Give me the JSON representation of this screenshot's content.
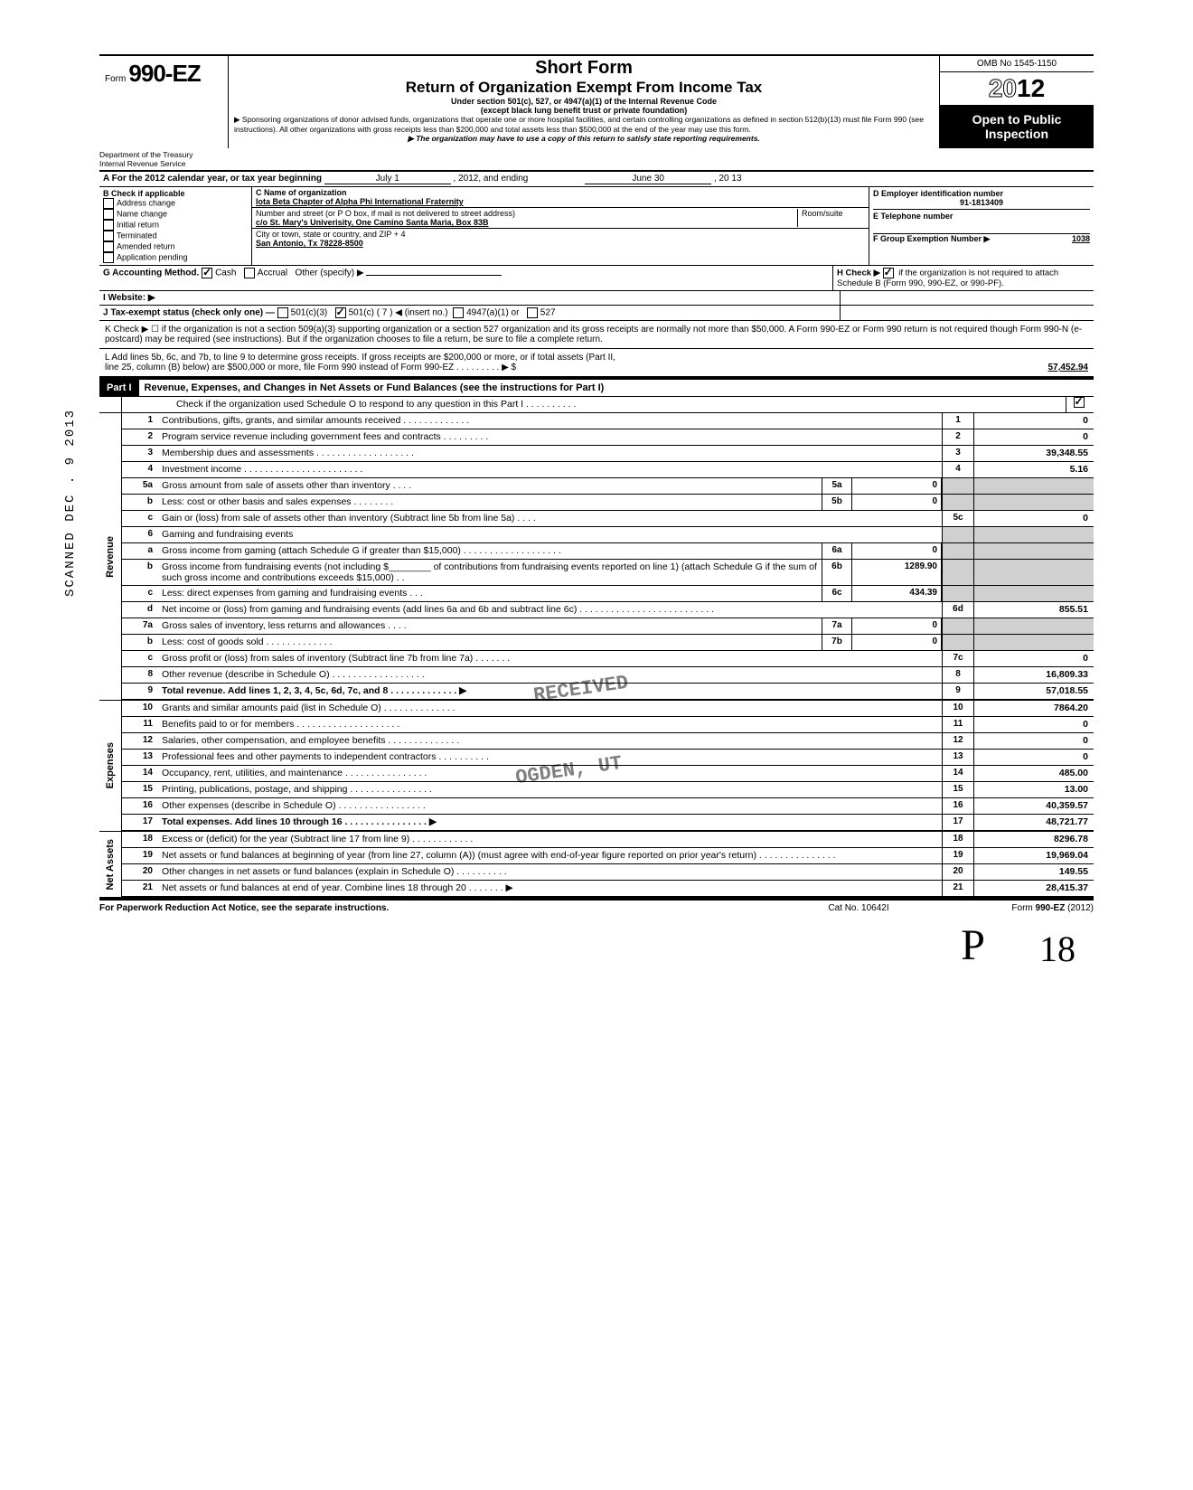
{
  "side_stamp": "SCANNED DEC . 9 2013",
  "omb": "OMB No 1545-1150",
  "form_label": "Form",
  "form_no": "990-EZ",
  "title1": "Short Form",
  "title2": "Return of Organization Exempt From Income Tax",
  "title3": "Under section 501(c), 527, or 4947(a)(1) of the Internal Revenue Code",
  "title4": "(except black lung benefit trust or private foundation)",
  "title5": "▶ Sponsoring organizations of donor advised funds, organizations that operate one or more hospital facilities, and certain controlling organizations as defined in section 512(b)(13) must file Form 990 (see instructions). All other organizations with gross receipts less than $200,000 and total assets less than $500,000 at the end of the year may use this form.",
  "title6": "▶ The organization may have to use a copy of this return to satisfy state reporting requirements.",
  "year": "2012",
  "open_public": "Open to Public Inspection",
  "dept1": "Department of the Treasury",
  "dept2": "Internal Revenue Service",
  "line_a": "A  For the 2012 calendar year, or tax year beginning",
  "line_a_begin": "July 1",
  "line_a_mid": ", 2012, and ending",
  "line_a_end": "June 30",
  "line_a_yr": ", 20   13",
  "b_label": "B  Check if applicable",
  "b_items": [
    "Address change",
    "Name change",
    "Initial return",
    "Terminated",
    "Amended return",
    "Application pending"
  ],
  "c_label": "C  Name of organization",
  "org_name": "Iota Beta Chapter of Alpha Phi International Fraternity",
  "street_label": "Number and street (or P O  box, if mail is not delivered to street address)",
  "room_label": "Room/suite",
  "street": "c/o St. Mary's Univerisity, One Camino Santa Maria, Box 83B",
  "city_label": "City or town, state or country, and ZIP + 4",
  "city": "San Antonio, Tx 78228-8500",
  "d_label": "D Employer identification number",
  "ein": "91-1813409",
  "e_label": "E  Telephone number",
  "f_label": "F  Group Exemption Number ▶",
  "f_val": "1038",
  "g_label": "G  Accounting Method.",
  "g_cash": "Cash",
  "g_accrual": "Accrual",
  "g_other": "Other (specify) ▶",
  "h_label": "H  Check ▶",
  "h_text": "if the organization is not required to attach Schedule B (Form 990, 990-EZ, or 990-PF).",
  "i_label": "I   Website: ▶",
  "j_label": "J  Tax-exempt status (check only one) —",
  "j_501c3": "501(c)(3)",
  "j_501c": "501(c) (  7  ) ◀ (insert no.)",
  "j_4947": "4947(a)(1) or",
  "j_527": "527",
  "k_text": "K  Check ▶  ☐   if the organization is not a section 509(a)(3) supporting organization or a section 527 organization and its gross receipts are normally not more than $50,000. A Form 990-EZ or Form 990 return is not required though Form 990-N (e-postcard) may be required (see instructions). But if the organization chooses to file a return, be sure to file a complete return.",
  "l_text1": "L  Add lines 5b, 6c, and 7b, to line 9 to determine gross receipts. If gross receipts are $200,000 or more, or if total assets (Part II,",
  "l_text2": "line 25, column (B) below) are $500,000 or more, file Form 990 instead of Form 990-EZ   .   .   .   .   .   .   .   .   .   ▶  $",
  "l_val": "57,452.94",
  "part1_label": "Part I",
  "part1_title": "Revenue, Expenses, and Changes in Net Assets or Fund Balances (see the instructions for Part I)",
  "part1_check": "Check if the organization used Schedule O to respond to any question in this Part I  .   .   .   .   .   .   .   .   .   .",
  "sections": {
    "revenue": "Revenue",
    "expenses": "Expenses",
    "netassets": "Net Assets"
  },
  "lines": {
    "1": {
      "n": "1",
      "d": "Contributions, gifts, grants, and similar amounts received .   .   .   .   .   .   .   .   .   .   .   .   .",
      "v": "0"
    },
    "2": {
      "n": "2",
      "d": "Program service revenue including government fees and contracts   .   .   .   .   .   .   .   .   .",
      "v": "0"
    },
    "3": {
      "n": "3",
      "d": "Membership dues and assessments .   .   .   .   .   .   .   .   .   .   .   .   .   .   .   .   .   .   .",
      "v": "39,348.55"
    },
    "4": {
      "n": "4",
      "d": "Investment income   .   .   .   .   .   .   .   .   .   .   .   .   .   .   .   .   .   .   .   .   .   .   .",
      "v": "5.16"
    },
    "5a": {
      "n": "5a",
      "d": "Gross amount from sale of assets other than inventory   .   .   .   .",
      "sn": "5a",
      "sv": "0"
    },
    "5b": {
      "n": "b",
      "d": "Less: cost or other basis and sales expenses .   .   .   .   .   .   .   .",
      "sn": "5b",
      "sv": "0"
    },
    "5c": {
      "n": "c",
      "d": "Gain or (loss) from sale of assets other than inventory (Subtract line 5b from line 5a)  .   .   .   .",
      "rn": "5c",
      "v": "0"
    },
    "6": {
      "n": "6",
      "d": "Gaming and fundraising events"
    },
    "6a": {
      "n": "a",
      "d": "Gross income from gaming (attach Schedule G if greater than $15,000) .   .   .   .   .   .   .   .   .   .   .   .   .   .   .   .   .   .   .",
      "sn": "6a",
      "sv": "0"
    },
    "6b": {
      "n": "b",
      "d": "Gross income from fundraising events (not including $________ of contributions from fundraising events reported on line 1) (attach Schedule G if the sum of such gross income and contributions exceeds $15,000) .   .",
      "sn": "6b",
      "sv": "1289.90"
    },
    "6c": {
      "n": "c",
      "d": "Less: direct expenses from gaming and fundraising events   .   .   .",
      "sn": "6c",
      "sv": "434.39"
    },
    "6d": {
      "n": "d",
      "d": "Net income or (loss) from gaming and fundraising events (add lines 6a and 6b and subtract line 6c)   .   .   .   .   .   .   .   .   .   .   .   .   .   .   .   .   .   .   .   .   .   .   .   .   .   .",
      "rn": "6d",
      "v": "855.51"
    },
    "7a": {
      "n": "7a",
      "d": "Gross sales of inventory, less returns and allowances   .   .   .   .",
      "sn": "7a",
      "sv": "0"
    },
    "7b": {
      "n": "b",
      "d": "Less: cost of goods sold   .   .   .   .   .   .   .   .   .   .   .   .   .",
      "sn": "7b",
      "sv": "0"
    },
    "7c": {
      "n": "c",
      "d": "Gross profit or (loss) from sales of inventory (Subtract line 7b from line 7a)   .   .   .   .   .   .   .",
      "rn": "7c",
      "v": "0"
    },
    "8": {
      "n": "8",
      "d": "Other revenue (describe in Schedule O) .   .   .   .   .   .   .   .   .   .   .   .   .   .   .   .   .   .",
      "v": "16,809.33"
    },
    "9": {
      "n": "9",
      "d": "Total revenue. Add lines 1, 2, 3, 4, 5c, 6d, 7c, and 8   .   .   .   .   .   .   .   .   .   .   .   .   .   ▶",
      "v": "57,018.55",
      "bold": true
    },
    "10": {
      "n": "10",
      "d": "Grants and similar amounts paid (list in Schedule O)   .   .   .   .   .   .   .   .   .   .   .   .   .   .",
      "v": "7864.20"
    },
    "11": {
      "n": "11",
      "d": "Benefits paid to or for members   .   .   .   .   .   .   .   .   .   .   .   .   .   .   .   .   .   .   .   .",
      "v": "0"
    },
    "12": {
      "n": "12",
      "d": "Salaries, other compensation, and employee benefits .   .   .   .   .   .   .   .   .   .   .   .   .   .",
      "v": "0"
    },
    "13": {
      "n": "13",
      "d": "Professional fees and other payments to independent contractors .   .   .   .   .   .   .   .   .   .",
      "v": "0"
    },
    "14": {
      "n": "14",
      "d": "Occupancy, rent, utilities, and maintenance   .   .   .   .   .   .   .   .   .   .   .   .   .   .   .   .",
      "v": "485.00"
    },
    "15": {
      "n": "15",
      "d": "Printing, publications, postage, and shipping .   .   .   .   .   .   .   .   .   .   .   .   .   .   .   .",
      "v": "13.00"
    },
    "16": {
      "n": "16",
      "d": "Other expenses (describe in Schedule O)   .   .   .   .   .   .   .   .   .   .   .   .   .   .   .   .   .",
      "v": "40,359.57"
    },
    "17": {
      "n": "17",
      "d": "Total expenses. Add lines 10 through 16   .   .   .   .   .   .   .   .   .   .   .   .   .   .   .   .   ▶",
      "v": "48,721.77",
      "bold": true
    },
    "18": {
      "n": "18",
      "d": "Excess or (deficit) for the year (Subtract line 17 from line 9)   .   .   .   .   .   .   .   .   .   .   .   .",
      "v": "8296.78"
    },
    "19": {
      "n": "19",
      "d": "Net assets or fund balances at beginning of year (from line 27, column (A)) (must agree with end-of-year figure reported on prior year's return)   .   .   .   .   .   .   .   .   .   .   .   .   .   .   .",
      "v": "19,969.04"
    },
    "20": {
      "n": "20",
      "d": "Other changes in net assets or fund balances (explain in Schedule O) .   .   .   .   .   .   .   .   .   .",
      "v": "149.55"
    },
    "21": {
      "n": "21",
      "d": "Net assets or fund balances at end of year. Combine lines 18 through 20   .   .   .   .   .   .   .   ▶",
      "v": "28,415.37"
    }
  },
  "footer_left": "For Paperwork Reduction Act Notice, see the separate instructions.",
  "footer_mid": "Cat  No. 10642I",
  "footer_right": "Form 990-EZ  (2012)",
  "stamp_text": "RECEIVED",
  "stamp_text2": "OGDEN, UT",
  "hand_sig": "P",
  "hand_num": "18"
}
